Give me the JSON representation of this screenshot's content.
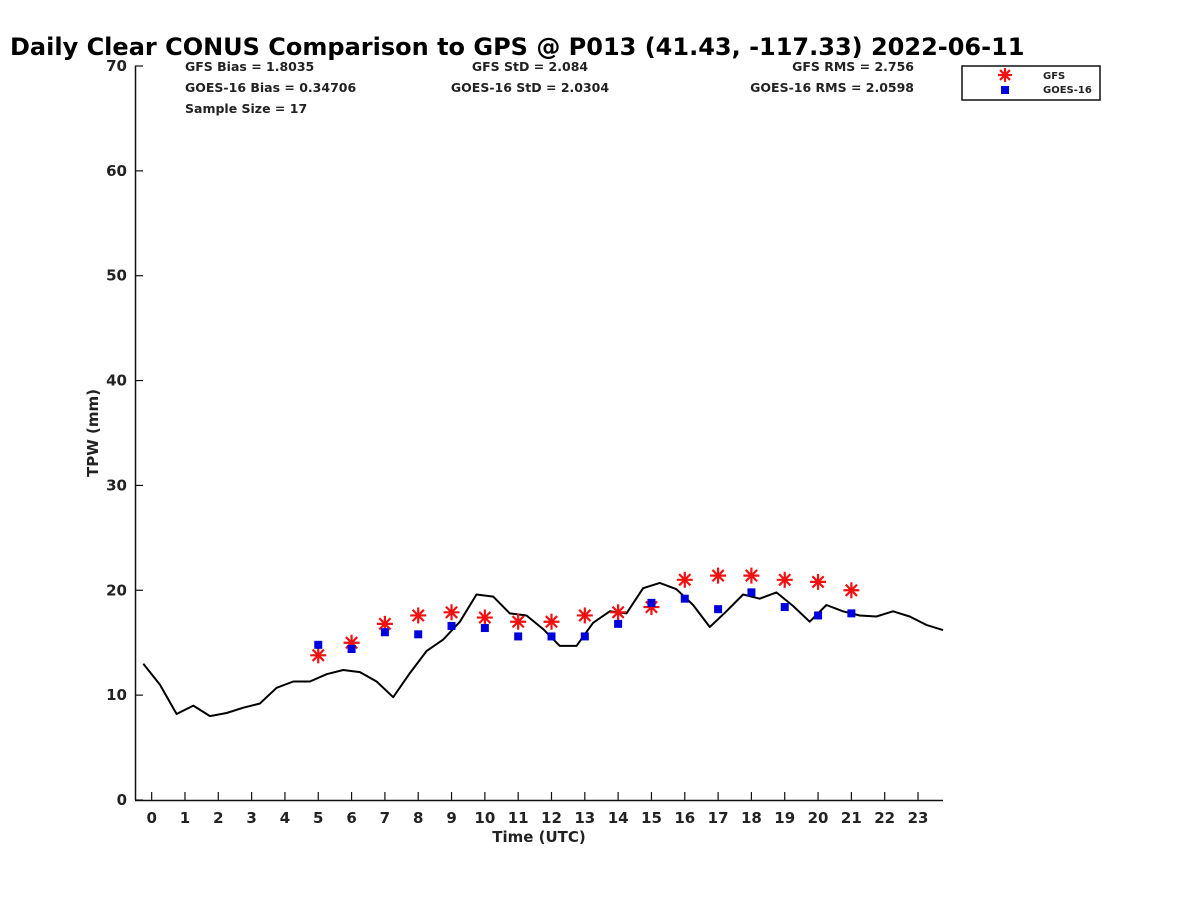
{
  "chart_data": {
    "type": "scatter",
    "title": "Daily Clear CONUS Comparison to GPS @ P013 (41.43, -117.33) 2022-06-11",
    "xlabel": "Time (UTC)",
    "ylabel": "TPW (mm)",
    "xlim": [
      -0.5,
      23.75
    ],
    "ylim": [
      0,
      70
    ],
    "xticks": [
      0,
      1,
      2,
      3,
      4,
      5,
      6,
      7,
      8,
      9,
      10,
      11,
      12,
      13,
      14,
      15,
      16,
      17,
      18,
      19,
      20,
      21,
      22,
      23
    ],
    "yticks": [
      0,
      10,
      20,
      30,
      40,
      50,
      60,
      70
    ],
    "grid": false,
    "legend_position": "top-right",
    "stats": {
      "gfs_bias": "GFS Bias = 1.8035",
      "goes_bias": "GOES-16 Bias = 0.34706",
      "sample_size": "Sample Size = 17",
      "gfs_std": "GFS StD = 2.084",
      "goes_std": "GOES-16 StD = 2.0304",
      "gfs_rms": "GFS RMS = 2.756",
      "goes_rms": "GOES-16 RMS = 2.0598"
    },
    "series": [
      {
        "name": "GPS",
        "style": "line",
        "color": "#000000",
        "x": [
          -0.25,
          0.25,
          0.75,
          1.25,
          1.75,
          2.25,
          2.75,
          3.25,
          3.75,
          4.25,
          4.75,
          5.25,
          5.75,
          6.25,
          6.75,
          7.25,
          7.75,
          8.25,
          8.75,
          9.25,
          9.75,
          10.25,
          10.75,
          11.25,
          11.75,
          12.25,
          12.75,
          13.25,
          13.75,
          14.25,
          14.75,
          15.25,
          15.75,
          16.25,
          16.75,
          17.25,
          17.75,
          18.25,
          18.75,
          19.25,
          19.75,
          20.25,
          20.75,
          21.25,
          21.75,
          22.25,
          22.75,
          23.25,
          23.75
        ],
        "values": [
          13.0,
          11.0,
          8.2,
          9.0,
          8.0,
          8.3,
          8.8,
          9.2,
          10.7,
          11.3,
          11.3,
          12.0,
          12.4,
          12.2,
          11.3,
          9.8,
          12.1,
          14.2,
          15.3,
          17.0,
          19.6,
          19.4,
          17.8,
          17.6,
          16.3,
          14.7,
          14.7,
          16.9,
          18.0,
          17.8,
          20.2,
          20.7,
          20.1,
          18.6,
          16.5,
          18.0,
          19.6,
          19.2,
          19.8,
          18.5,
          17.0,
          18.6,
          18.0,
          17.6,
          17.5,
          18.0,
          17.5,
          16.7,
          16.2
        ]
      },
      {
        "name": "GFS",
        "style": "asterisk",
        "color": "#ee1111",
        "x": [
          5,
          6,
          7,
          8,
          9,
          10,
          11,
          12,
          13,
          14,
          15,
          16,
          17,
          18,
          19,
          20,
          21
        ],
        "values": [
          13.8,
          15.0,
          16.8,
          17.6,
          17.9,
          17.4,
          17.0,
          17.0,
          17.6,
          17.9,
          18.4,
          21.0,
          21.4,
          21.4,
          21.0,
          20.8,
          20.0
        ]
      },
      {
        "name": "GOES-16",
        "style": "square",
        "color": "#0000dd",
        "x": [
          5,
          6,
          7,
          8,
          9,
          10,
          11,
          12,
          13,
          14,
          15,
          16,
          17,
          18,
          19,
          20,
          21
        ],
        "values": [
          14.8,
          14.4,
          16.0,
          15.8,
          16.6,
          16.4,
          15.6,
          15.6,
          15.6,
          16.8,
          18.8,
          19.2,
          18.2,
          19.8,
          18.4,
          17.6,
          17.8
        ]
      }
    ],
    "legend": [
      "GFS",
      "GOES-16"
    ]
  }
}
